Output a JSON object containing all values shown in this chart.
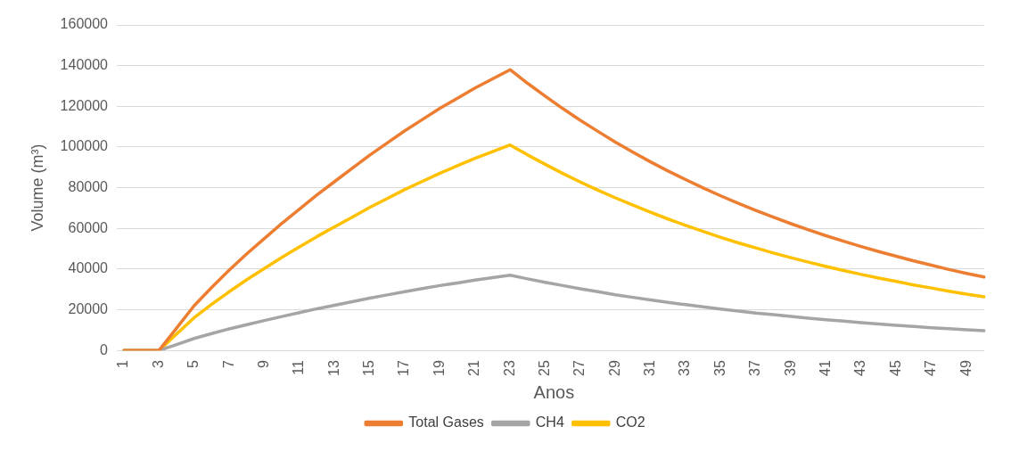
{
  "chart_data": {
    "type": "line",
    "xlabel": "Anos",
    "ylabel": "Volume (m³)",
    "categories": [
      "1",
      null,
      "3",
      null,
      "5",
      null,
      "7",
      null,
      "9",
      null,
      "11",
      null,
      "13",
      null,
      "15",
      null,
      "17",
      null,
      "19",
      null,
      "21",
      null,
      "23",
      null,
      "25",
      null,
      "27",
      null,
      "29",
      null,
      "31",
      null,
      "33",
      null,
      "35",
      null,
      "37",
      null,
      "39",
      null,
      "41",
      null,
      "43",
      null,
      "45",
      null,
      "47",
      null,
      "49",
      null
    ],
    "series": [
      {
        "name": "Total Gases",
        "color": "#ed7d31",
        "values": [
          0,
          0,
          0,
          11000,
          22000,
          31000,
          39500,
          47500,
          55000,
          62500,
          69500,
          76500,
          83000,
          89500,
          96000,
          102000,
          108000,
          113500,
          119000,
          124000,
          129000,
          133500,
          138000,
          131300,
          125000,
          118900,
          113100,
          107700,
          102400,
          97500,
          92700,
          88200,
          84000,
          79900,
          76000,
          72300,
          68800,
          65500,
          62300,
          59300,
          56400,
          53700,
          51100,
          48600,
          46300,
          44000,
          41900,
          39800,
          37900,
          36100
        ]
      },
      {
        "name": "CH4",
        "color": "#a5a5a5",
        "values": [
          0,
          0,
          0,
          2900,
          5900,
          8300,
          10600,
          12700,
          14700,
          16700,
          18600,
          20500,
          22200,
          24000,
          25700,
          27300,
          28900,
          30400,
          31900,
          33200,
          34600,
          35800,
          37000,
          35200,
          33500,
          31900,
          30300,
          28900,
          27400,
          26100,
          24800,
          23600,
          22500,
          21400,
          20400,
          19400,
          18400,
          17600,
          16700,
          15900,
          15100,
          14400,
          13700,
          13000,
          12400,
          11800,
          11200,
          10700,
          10200,
          9700
        ]
      },
      {
        "name": "CO2",
        "color": "#ffc000",
        "values": [
          0,
          0,
          0,
          8100,
          16100,
          22700,
          28900,
          34800,
          40300,
          45800,
          50900,
          56000,
          60800,
          65500,
          70300,
          74700,
          79100,
          83100,
          87100,
          90800,
          94400,
          97700,
          101000,
          96100,
          91500,
          87000,
          82800,
          78800,
          75000,
          71400,
          67900,
          64600,
          61500,
          58500,
          55600,
          52900,
          50400,
          47900,
          45600,
          43400,
          41300,
          39300,
          37400,
          35600,
          33900,
          32200,
          30700,
          29100,
          27700,
          26400
        ]
      }
    ],
    "ylim": [
      0,
      160000
    ],
    "yticks": [
      0,
      20000,
      40000,
      60000,
      80000,
      100000,
      120000,
      140000,
      160000
    ],
    "grid": "y",
    "legend": "bottom",
    "marker": "none",
    "line_style": "solid"
  }
}
